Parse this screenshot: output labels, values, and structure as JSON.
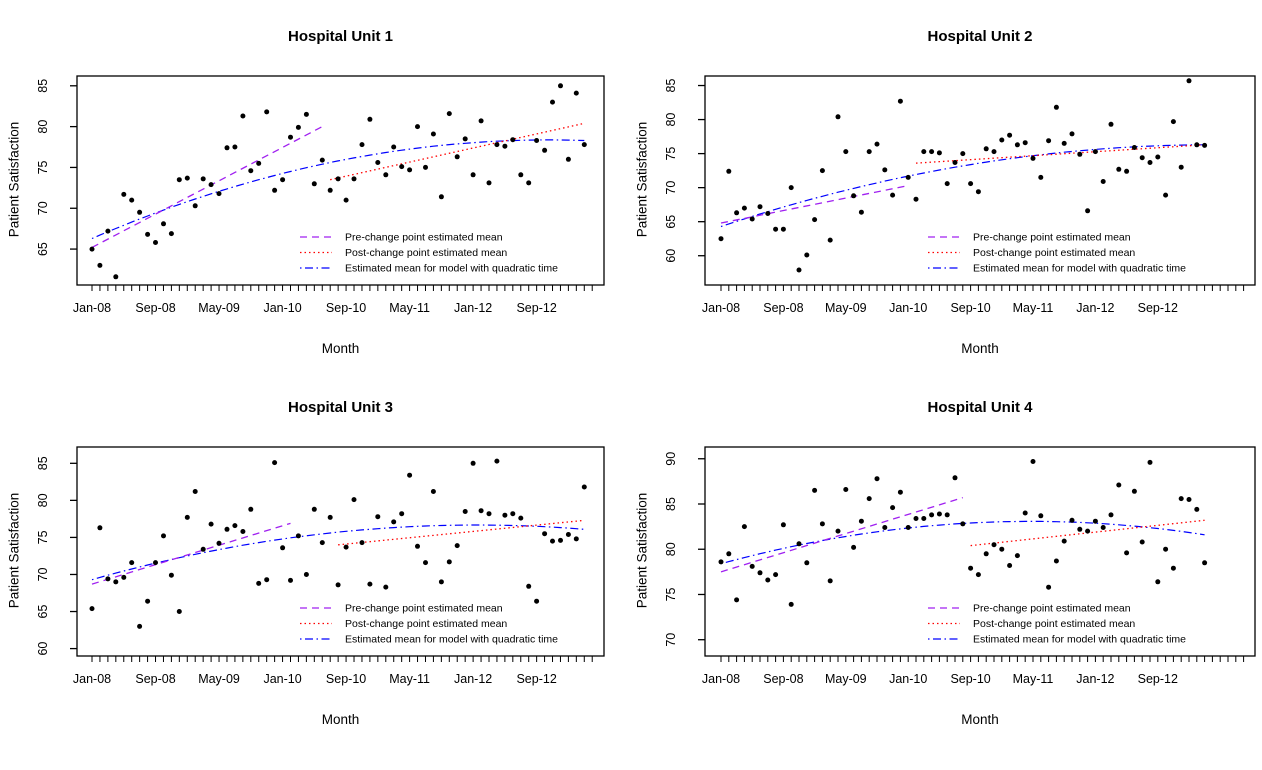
{
  "figure": {
    "background": "#ffffff",
    "description": "Four scatter plots of monthly patient satisfaction with change-point and quadratic model fitted means"
  },
  "axis": {
    "x_label": "Month",
    "y_label": "Patient Satisfaction",
    "x_tick_labels": [
      "Jan-08",
      "Sep-08",
      "May-09",
      "Jan-10",
      "Sep-10",
      "May-11",
      "Jan-12",
      "Sep-12"
    ],
    "x_tick_months": [
      0,
      8,
      16,
      24,
      32,
      40,
      48,
      56
    ]
  },
  "legend": {
    "items": [
      {
        "label": "Pre-change point estimated mean",
        "color": "#A020F0",
        "dash": "dashed"
      },
      {
        "label": "Post-change point estimated mean",
        "color": "#FF0000",
        "dash": "dotted"
      },
      {
        "label": "Estimated mean for model with quadratic time",
        "color": "#0000FF",
        "dash": "dotdash"
      }
    ]
  },
  "colors": {
    "points": "#000000",
    "pre_change": "#A020F0",
    "post_change": "#FF0000",
    "quadratic": "#0000FF",
    "frame": "#000000"
  },
  "chart_data": [
    {
      "type": "scatter",
      "title": "Hospital Unit 1",
      "xlabel": "Month",
      "ylabel": "Patient Satisfaction",
      "x_start": "Jan-08",
      "yticks": [
        65,
        70,
        75,
        80,
        85
      ],
      "ylim": [
        60.6,
        86.2
      ],
      "values": [
        65,
        63,
        67.2,
        61.6,
        71.7,
        71,
        69.5,
        66.8,
        65.8,
        68.1,
        66.9,
        73.5,
        73.7,
        70.3,
        73.6,
        72.9,
        71.8,
        77.4,
        77.5,
        81.3,
        74.6,
        75.5,
        81.8,
        72.2,
        73.5,
        78.7,
        79.9,
        81.5,
        73,
        75.9,
        72.2,
        73.6,
        71,
        73.6,
        77.8,
        80.9,
        75.6,
        74.1,
        77.5,
        75.1,
        74.7,
        80,
        75,
        79.1,
        71.4,
        81.6,
        76.3,
        78.5,
        74.1,
        80.7,
        73.1,
        77.8,
        77.6,
        78.4,
        74.1,
        73.1,
        78.3,
        77.1,
        83,
        85,
        76,
        84.1,
        77.8
      ],
      "pre_change_line": {
        "x": [
          0,
          29
        ],
        "y": [
          65.2,
          80.0
        ]
      },
      "post_change_line": {
        "x": [
          30,
          62
        ],
        "y": [
          73.5,
          80.4
        ]
      },
      "quadratic_mean": {
        "a": 66.3,
        "b": 0.4192,
        "c": -0.00364
      }
    },
    {
      "type": "scatter",
      "title": "Hospital Unit 2",
      "xlabel": "Month",
      "ylabel": "Patient Satisfaction",
      "x_start": "Jan-08",
      "yticks": [
        60,
        65,
        70,
        75,
        80,
        85
      ],
      "ylim": [
        55.7,
        86.4
      ],
      "values": [
        62.5,
        72.4,
        66.3,
        67,
        65.4,
        67.2,
        66.2,
        63.9,
        63.9,
        70,
        57.9,
        60.1,
        65.3,
        72.5,
        62.3,
        80.4,
        75.3,
        68.8,
        66.4,
        75.3,
        76.4,
        72.6,
        68.9,
        82.7,
        71.5,
        68.3,
        75.3,
        75.3,
        75.1,
        70.6,
        73.7,
        75,
        70.6,
        69.4,
        75.7,
        75.3,
        77,
        77.7,
        76.3,
        76.6,
        74.3,
        71.5,
        76.9,
        81.8,
        76.5,
        77.9,
        74.9,
        66.6,
        75.3,
        70.9,
        79.3,
        72.7,
        72.4,
        75.9,
        74.4,
        73.7,
        74.5,
        68.9,
        79.7,
        73,
        85.7,
        76.3,
        76.2
      ],
      "pre_change_line": {
        "x": [
          0,
          24
        ],
        "y": [
          64.8,
          70.3
        ]
      },
      "post_change_line": {
        "x": [
          25,
          62
        ],
        "y": [
          73.6,
          76.3
        ]
      },
      "quadratic_mean": {
        "a": 64.3,
        "b": 0.3804,
        "c": -0.003014
      }
    },
    {
      "type": "scatter",
      "title": "Hospital Unit 3",
      "xlabel": "Month",
      "ylabel": "Patient Satisfaction",
      "x_start": "Jan-08",
      "yticks": [
        60,
        65,
        70,
        75,
        80,
        85
      ],
      "ylim": [
        59.0,
        87.2
      ],
      "values": [
        65.4,
        76.3,
        69.4,
        69,
        69.6,
        71.6,
        63,
        66.4,
        71.6,
        75.2,
        69.9,
        65,
        77.7,
        81.2,
        73.4,
        76.8,
        74.2,
        76.1,
        76.6,
        75.8,
        78.8,
        68.8,
        69.3,
        85.1,
        73.6,
        69.2,
        75.2,
        70,
        78.8,
        74.3,
        77.7,
        68.6,
        73.7,
        80.1,
        74.3,
        68.7,
        77.8,
        68.3,
        77.1,
        78.2,
        83.4,
        73.8,
        71.6,
        81.2,
        69,
        71.7,
        73.9,
        78.5,
        85,
        78.6,
        78.2,
        85.3,
        78,
        78.2,
        77.6,
        68.4,
        66.4,
        75.5,
        74.5,
        74.6,
        75.4,
        74.8,
        81.8
      ],
      "pre_change_line": {
        "x": [
          0,
          25
        ],
        "y": [
          68.7,
          76.9
        ]
      },
      "post_change_line": {
        "x": [
          31,
          62
        ],
        "y": [
          74.0,
          77.3
        ]
      },
      "quadratic_mean": {
        "a": 69.3,
        "b": 0.30405,
        "c": -0.003135
      }
    },
    {
      "type": "scatter",
      "title": "Hospital Unit 4",
      "xlabel": "Month",
      "ylabel": "Patient Satisfaction",
      "x_start": "Jan-08",
      "yticks": [
        70,
        75,
        80,
        85,
        90
      ],
      "ylim": [
        68.2,
        91.3
      ],
      "values": [
        78.6,
        79.5,
        74.4,
        82.5,
        78.1,
        77.4,
        76.6,
        77.2,
        82.7,
        73.9,
        80.6,
        78.5,
        86.5,
        82.8,
        76.5,
        82,
        86.6,
        80.2,
        83.1,
        85.6,
        87.8,
        82.4,
        84.6,
        86.3,
        82.4,
        83.4,
        83.4,
        83.8,
        83.9,
        83.8,
        87.9,
        82.8,
        77.9,
        77.2,
        79.5,
        80.5,
        80,
        78.2,
        79.3,
        84,
        89.7,
        83.7,
        75.8,
        78.7,
        80.9,
        83.2,
        82.2,
        82,
        83.1,
        82.4,
        83.8,
        87.1,
        79.6,
        86.4,
        80.8,
        89.6,
        76.4,
        80,
        77.9,
        85.6,
        85.5,
        84.4,
        78.5
      ],
      "pre_change_line": {
        "x": [
          0,
          31
        ],
        "y": [
          77.5,
          85.7
        ]
      },
      "post_change_line": {
        "x": [
          32,
          62
        ],
        "y": [
          80.4,
          83.2
        ]
      },
      "quadratic_mean": {
        "a": 78.4,
        "b": 0.23577,
        "c": -0.00297
      }
    }
  ]
}
